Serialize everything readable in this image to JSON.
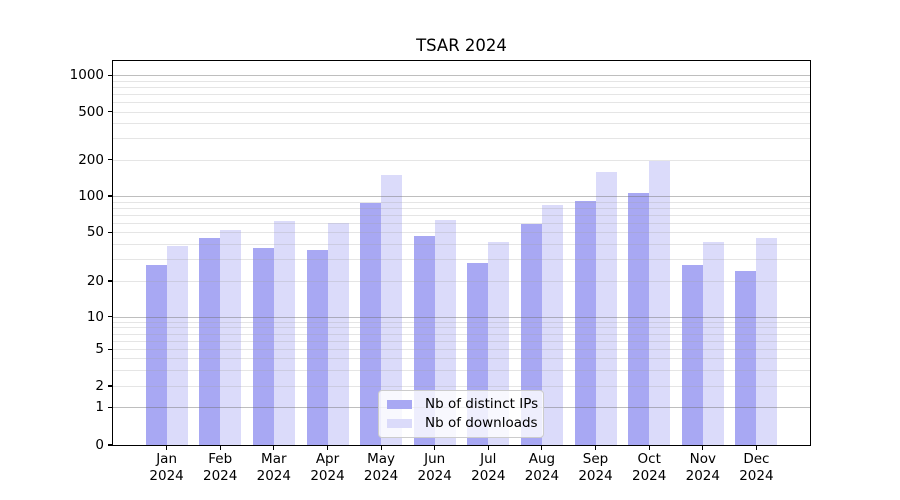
{
  "figure_title": "TSAR 2024",
  "chart_data": {
    "type": "bar",
    "title": "TSAR 2024",
    "xlabel": "",
    "ylabel": "",
    "yscale": "symlog",
    "ylim": [
      0,
      1300
    ],
    "grid": "on",
    "legend_position": "lower-center-inside",
    "categories": [
      "Jan",
      "Feb",
      "Mar",
      "Apr",
      "May",
      "Jun",
      "Jul",
      "Aug",
      "Sep",
      "Oct",
      "Nov",
      "Dec"
    ],
    "x_tick_second_line": "2024",
    "y_ticks": [
      0,
      1,
      2,
      5,
      10,
      20,
      50,
      100,
      200,
      500,
      1000
    ],
    "y_major_gridlines": [
      1,
      10,
      100,
      1000
    ],
    "series": [
      {
        "name": "Nb of distinct IPs",
        "color": "#a8a8f3",
        "values": [
          27,
          45,
          37,
          36,
          87,
          47,
          28,
          59,
          91,
          107,
          27,
          24
        ]
      },
      {
        "name": "Nb of downloads",
        "color": "#dbdbfa",
        "values": [
          39,
          52,
          62,
          60,
          150,
          63,
          42,
          85,
          158,
          197,
          42,
          45
        ]
      }
    ]
  }
}
